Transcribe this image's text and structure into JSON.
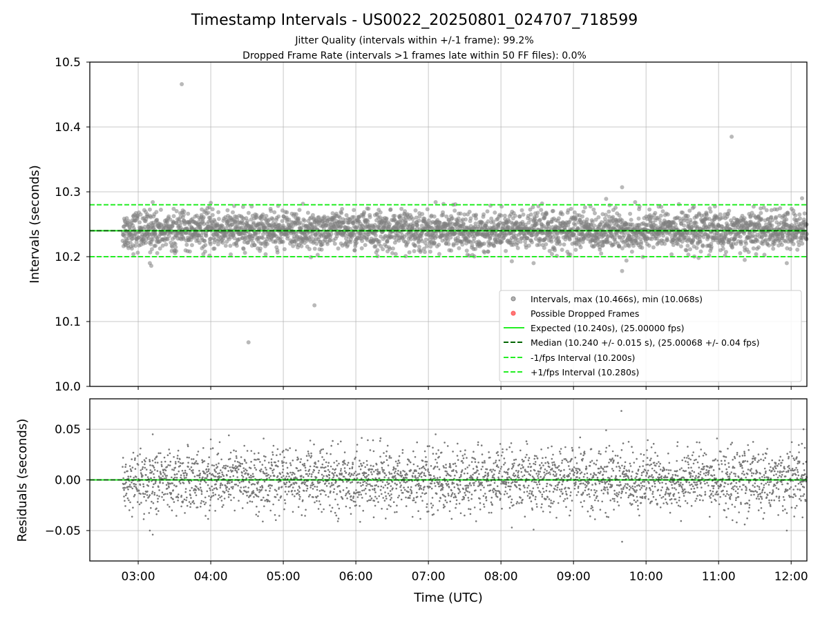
{
  "chart_data": {
    "type": "scatter",
    "title": "Timestamp Intervals - US0022_20250801_024707_718599",
    "subtitle_lines": [
      "Jitter Quality (intervals within +/-1 frame): 99.2%",
      "Dropped Frame Rate (intervals >1 frames late within 50 FF files): 0.0%"
    ],
    "x_axis": {
      "label": "Time (UTC)",
      "unit": "hours",
      "range": [
        2.333,
        12.217
      ],
      "ticks": [
        {
          "value": 3,
          "label": "03:00"
        },
        {
          "value": 4,
          "label": "04:00"
        },
        {
          "value": 5,
          "label": "05:00"
        },
        {
          "value": 6,
          "label": "06:00"
        },
        {
          "value": 7,
          "label": "07:00"
        },
        {
          "value": 8,
          "label": "08:00"
        },
        {
          "value": 9,
          "label": "09:00"
        },
        {
          "value": 10,
          "label": "10:00"
        },
        {
          "value": 11,
          "label": "11:00"
        },
        {
          "value": 12,
          "label": "12:00"
        }
      ]
    },
    "panels": [
      {
        "id": "intervals",
        "ylabel": "Intervals (seconds)",
        "ylim": [
          10.0,
          10.5
        ],
        "yticks": [
          {
            "value": 10.0,
            "label": "10.0"
          },
          {
            "value": 10.1,
            "label": "10.1"
          },
          {
            "value": 10.2,
            "label": "10.2"
          },
          {
            "value": 10.3,
            "label": "10.3"
          },
          {
            "value": 10.4,
            "label": "10.4"
          },
          {
            "value": 10.5,
            "label": "10.5"
          }
        ],
        "grid": true,
        "legend_position": "lower-right",
        "scatter_series": {
          "name": "Intervals, max (10.466s), min (10.068s)",
          "color": "#808080",
          "x_start": 2.786,
          "x_end": 12.217,
          "center": 10.24,
          "spread_std": 0.015,
          "approx_point_count": 3300,
          "outliers": [
            {
              "x": 3.6,
              "y": 10.466
            },
            {
              "x": 4.52,
              "y": 10.068
            },
            {
              "x": 5.43,
              "y": 10.125
            },
            {
              "x": 11.18,
              "y": 10.385
            },
            {
              "x": 9.67,
              "y": 10.307
            },
            {
              "x": 9.67,
              "y": 10.178
            },
            {
              "x": 3.18,
              "y": 10.186
            },
            {
              "x": 3.16,
              "y": 10.19
            },
            {
              "x": 9.45,
              "y": 10.289
            },
            {
              "x": 12.15,
              "y": 10.29
            },
            {
              "x": 11.94,
              "y": 10.19
            },
            {
              "x": 8.45,
              "y": 10.19
            },
            {
              "x": 8.15,
              "y": 10.193
            },
            {
              "x": 9.73,
              "y": 10.194
            },
            {
              "x": 11.36,
              "y": 10.195
            },
            {
              "x": 9.85,
              "y": 10.284
            },
            {
              "x": 3.2,
              "y": 10.284
            },
            {
              "x": 7.1,
              "y": 10.284
            },
            {
              "x": 4.0,
              "y": 10.283
            }
          ]
        },
        "dropped_series": {
          "name": "Possible Dropped Frames",
          "color": "#ff5555",
          "points": []
        },
        "lines": [
          {
            "name": "Expected (10.240s), (25.00000 fps)",
            "y": 10.24,
            "color": "#22ee22",
            "style": "solid"
          },
          {
            "name": "Median (10.240 +/- 0.015 s), (25.00068 +/- 0.04 fps)",
            "y": 10.24,
            "color": "#006400",
            "style": "dashed"
          },
          {
            "name": "-1/fps Interval (10.200s)",
            "y": 10.2,
            "color": "#22ee22",
            "style": "dashed"
          },
          {
            "name": "+1/fps Interval (10.280s)",
            "y": 10.28,
            "color": "#22ee22",
            "style": "dashed"
          }
        ]
      },
      {
        "id": "residuals",
        "ylabel": "Residuals (seconds)",
        "ylim": [
          -0.08,
          0.08
        ],
        "yticks": [
          {
            "value": 0.05,
            "label": "0.05"
          },
          {
            "value": 0.0,
            "label": "0.00"
          },
          {
            "value": -0.05,
            "label": "−0.05"
          }
        ],
        "grid": true,
        "scatter_series": {
          "color": "#777777",
          "x_start": 2.786,
          "x_end": 12.217,
          "center": 0.0,
          "spread_std": 0.015,
          "approx_point_count": 3300,
          "outliers": [
            {
              "x": 9.66,
              "y": 0.068
            },
            {
              "x": 9.67,
              "y": -0.061
            },
            {
              "x": 12.17,
              "y": 0.05
            },
            {
              "x": 3.2,
              "y": -0.054
            },
            {
              "x": 3.16,
              "y": -0.05
            },
            {
              "x": 11.94,
              "y": -0.05
            },
            {
              "x": 8.45,
              "y": -0.049
            },
            {
              "x": 3.2,
              "y": 0.045
            },
            {
              "x": 7.1,
              "y": 0.045
            },
            {
              "x": 8.15,
              "y": -0.047
            },
            {
              "x": 11.36,
              "y": -0.044
            },
            {
              "x": 9.45,
              "y": 0.049
            },
            {
              "x": 4.25,
              "y": 0.044
            },
            {
              "x": 4.0,
              "y": 0.04
            }
          ]
        },
        "lines": [
          {
            "y": 0.0,
            "color": "#22ee22",
            "style": "solid"
          },
          {
            "y": 0.0,
            "color": "#006400",
            "style": "dashed"
          }
        ]
      }
    ]
  }
}
